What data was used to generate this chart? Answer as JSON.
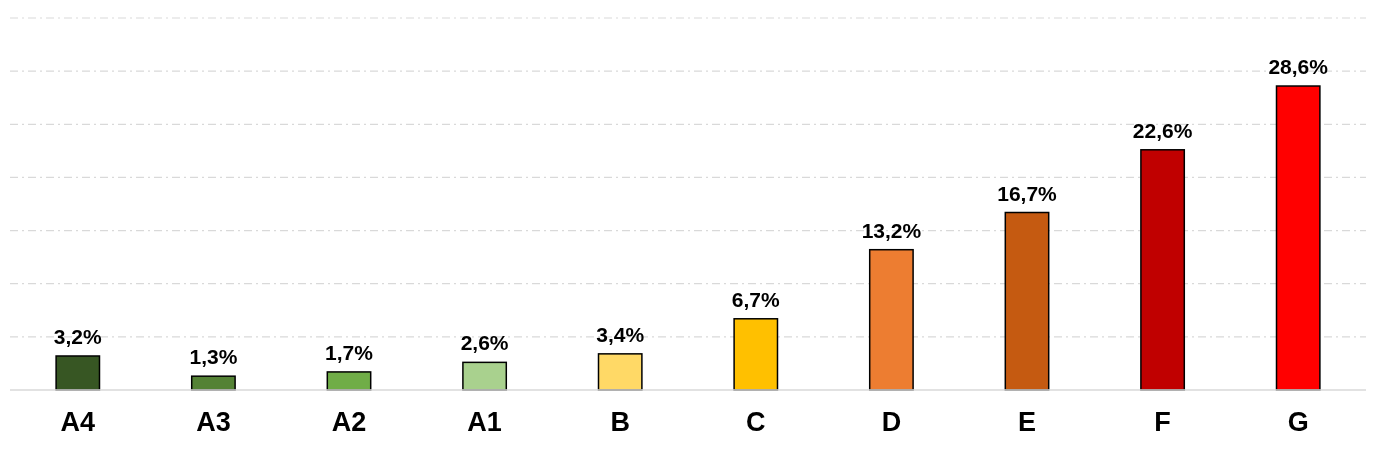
{
  "chart_data": {
    "type": "bar",
    "categories": [
      "A4",
      "A3",
      "A2",
      "A1",
      "B",
      "C",
      "D",
      "E",
      "F",
      "G"
    ],
    "values": [
      3.2,
      1.3,
      1.7,
      2.6,
      3.4,
      6.7,
      13.2,
      16.7,
      22.6,
      28.6
    ],
    "colors": [
      "#375623",
      "#548235",
      "#70ad47",
      "#a9d18e",
      "#ffd966",
      "#ffc000",
      "#ed7d31",
      "#c55a11",
      "#c00000",
      "#ff0000"
    ],
    "value_labels": [
      "3,2%",
      "1,3%",
      "1,7%",
      "2,6%",
      "3,4%",
      "6,7%",
      "13,2%",
      "16,7%",
      "22,6%",
      "28,6%"
    ],
    "ylim": [
      0,
      35
    ],
    "yticks": [
      {
        "value": 0,
        "label": null
      },
      {
        "value": 5,
        "label": null
      },
      {
        "value": 10,
        "label": null
      },
      {
        "value": 15,
        "label": null
      },
      {
        "value": 20,
        "label": null
      },
      {
        "value": 25,
        "label": null
      },
      {
        "value": 30,
        "label": null
      },
      {
        "value": 35,
        "label": null
      }
    ],
    "grid": "y",
    "tick_labels": "x"
  }
}
